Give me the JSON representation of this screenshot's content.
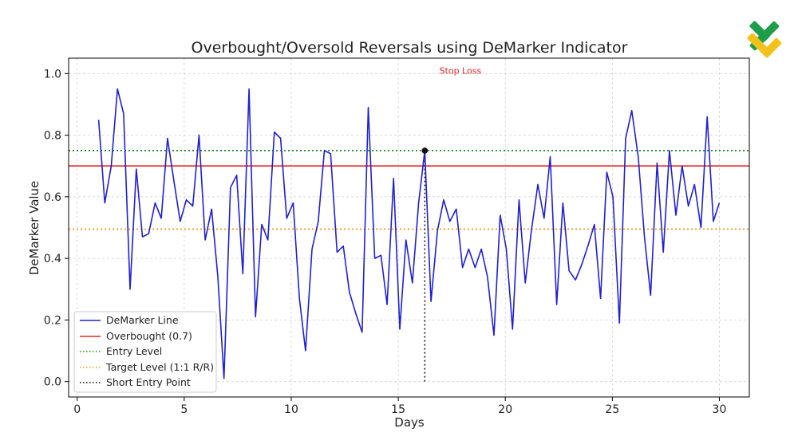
{
  "chart_data": {
    "type": "line",
    "title": "Overbought/Oversold Reversals using DeMarker Indicator",
    "xlabel": "Days",
    "ylabel": "DeMarker Value",
    "xlim": [
      -0.4,
      31.4
    ],
    "ylim": [
      -0.05,
      1.05
    ],
    "xticks": [
      0,
      5,
      10,
      15,
      20,
      25,
      30
    ],
    "yticks": [
      0.0,
      0.2,
      0.4,
      0.6,
      0.8,
      1.0
    ],
    "xtick_labels": [
      "0",
      "5",
      "10",
      "15",
      "20",
      "25",
      "30"
    ],
    "ytick_labels": [
      "0.0",
      "0.2",
      "0.4",
      "0.6",
      "0.8",
      "1.0"
    ],
    "grid": true,
    "legend_position": "lower-left",
    "series": [
      {
        "name": "DeMarker Line",
        "color": "#1f1fd6",
        "style": "solid",
        "x": [
          1.0,
          1.29,
          1.59,
          1.88,
          2.17,
          2.47,
          2.76,
          3.05,
          3.34,
          3.64,
          3.93,
          4.22,
          4.52,
          4.81,
          5.1,
          5.4,
          5.69,
          5.98,
          6.28,
          6.57,
          6.86,
          7.16,
          7.45,
          7.74,
          8.03,
          8.33,
          8.62,
          8.91,
          9.21,
          9.5,
          9.79,
          10.09,
          10.38,
          10.67,
          10.97,
          11.26,
          11.55,
          11.84,
          12.14,
          12.43,
          12.72,
          13.02,
          13.31,
          13.6,
          13.9,
          14.19,
          14.48,
          14.78,
          15.07,
          15.36,
          15.66,
          15.95,
          16.24,
          16.53,
          16.83,
          17.12,
          17.41,
          17.71,
          18.0,
          18.29,
          18.59,
          18.88,
          19.17,
          19.47,
          19.76,
          20.05,
          20.34,
          20.64,
          20.93,
          21.22,
          21.52,
          21.81,
          22.1,
          22.4,
          22.69,
          22.98,
          23.28,
          23.57,
          23.86,
          24.16,
          24.45,
          24.74,
          25.03,
          25.33,
          25.62,
          25.91,
          26.21,
          26.5,
          26.79,
          27.09,
          27.38,
          27.67,
          27.97,
          28.26,
          28.55,
          28.84,
          29.14,
          29.43,
          29.72,
          30.0
        ],
        "values": [
          0.85,
          0.58,
          0.7,
          0.95,
          0.87,
          0.3,
          0.69,
          0.47,
          0.48,
          0.58,
          0.53,
          0.79,
          0.65,
          0.52,
          0.59,
          0.57,
          0.8,
          0.46,
          0.56,
          0.34,
          0.01,
          0.63,
          0.67,
          0.35,
          0.95,
          0.21,
          0.51,
          0.46,
          0.81,
          0.79,
          0.53,
          0.58,
          0.27,
          0.1,
          0.43,
          0.52,
          0.75,
          0.74,
          0.42,
          0.44,
          0.29,
          0.22,
          0.16,
          0.89,
          0.4,
          0.41,
          0.25,
          0.66,
          0.17,
          0.46,
          0.32,
          0.58,
          0.75,
          0.26,
          0.49,
          0.59,
          0.52,
          0.56,
          0.37,
          0.43,
          0.37,
          0.43,
          0.34,
          0.15,
          0.54,
          0.43,
          0.17,
          0.59,
          0.32,
          0.49,
          0.64,
          0.53,
          0.73,
          0.25,
          0.58,
          0.36,
          0.33,
          0.38,
          0.44,
          0.51,
          0.27,
          0.68,
          0.6,
          0.19,
          0.79,
          0.88,
          0.73,
          0.47,
          0.28,
          0.71,
          0.42,
          0.75,
          0.54,
          0.7,
          0.57,
          0.64,
          0.5,
          0.86,
          0.52,
          0.58
        ]
      },
      {
        "name": "Overbought (0.7)",
        "color": "#e8262a",
        "style": "solid",
        "hline": 0.7
      },
      {
        "name": "Entry Level",
        "color": "#1a8a1a",
        "style": "dotted",
        "hline": 0.75
      },
      {
        "name": "Target Level (1:1 R/R)",
        "color": "#f5a020",
        "style": "dotted",
        "hline": 0.495
      },
      {
        "name": "Short Entry Point",
        "color": "#111111",
        "style": "dotted",
        "vline": {
          "x": 16.24,
          "y_from": 0.0,
          "y_to": 0.75
        }
      }
    ],
    "marker": {
      "x": 16.24,
      "y": 0.75,
      "color": "#111111"
    },
    "annotations": [
      {
        "text": "Stop Loss",
        "color": "#e8262a",
        "x": 17.9,
        "y": 1.0
      }
    ]
  }
}
